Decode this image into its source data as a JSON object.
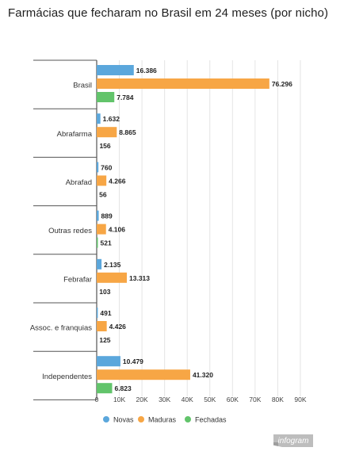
{
  "title": "Farmácias que fecharam no Brasil em 24 meses (por nicho)",
  "badge_label": "infogram",
  "chart_data": {
    "type": "bar",
    "orientation": "horizontal",
    "title": "Farmácias que fecharam no Brasil em 24 meses (por nicho)",
    "xlabel": "",
    "ylabel": "",
    "xlim": [
      0,
      90000
    ],
    "ticks": [
      0,
      10000,
      20000,
      30000,
      40000,
      50000,
      60000,
      70000,
      80000,
      90000
    ],
    "tick_labels": [
      "0",
      "10K",
      "20K",
      "30K",
      "40K",
      "50K",
      "60K",
      "70K",
      "80K",
      "90K"
    ],
    "grid": true,
    "legend_position": "bottom",
    "categories": [
      "Brasil",
      "Abrafarma",
      "Abrafad",
      "Outras redes",
      "Febrafar",
      "Assoc. e franquias",
      "Independentes"
    ],
    "series": [
      {
        "name": "Novas",
        "color": "#5ba7dc",
        "values": [
          16386,
          1632,
          760,
          889,
          2135,
          491,
          10479
        ],
        "labels": [
          "16.386",
          "1.632",
          "760",
          "889",
          "2.135",
          "491",
          "10.479"
        ]
      },
      {
        "name": "Maduras",
        "color": "#f7a645",
        "values": [
          76296,
          8865,
          4266,
          4106,
          13313,
          4426,
          41320
        ],
        "labels": [
          "76.296",
          "8.865",
          "4.266",
          "4.106",
          "13.313",
          "4.426",
          "41.320"
        ]
      },
      {
        "name": "Fechadas",
        "color": "#62c46b",
        "values": [
          7784,
          156,
          56,
          521,
          103,
          125,
          6823
        ],
        "labels": [
          "7.784",
          "156",
          "56",
          "521",
          "103",
          "125",
          "6.823"
        ]
      }
    ]
  }
}
